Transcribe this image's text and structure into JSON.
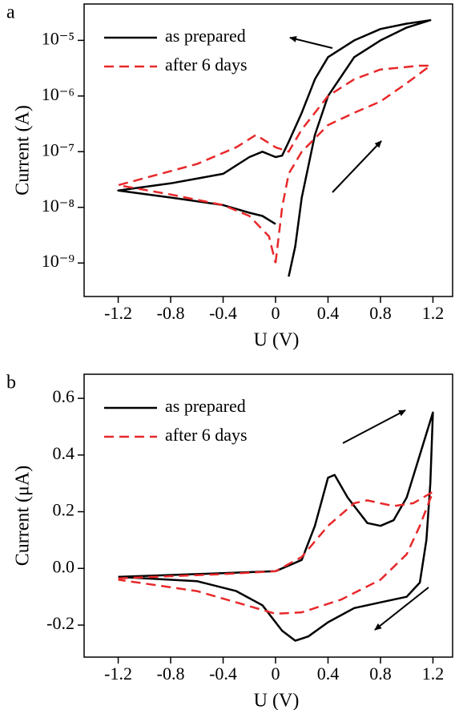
{
  "chart_data": [
    {
      "type": "line",
      "panel_label": "a",
      "xlabel": "U (V)",
      "ylabel": "Current (A)",
      "yscale": "log",
      "legend": "upper left",
      "xlim": [
        -1.46,
        1.35
      ],
      "xticks": [
        -1.2,
        -0.8,
        -0.4,
        0,
        0.4,
        0.8,
        1.2
      ],
      "ylim": [
        2.5e-10,
        4.5e-05
      ],
      "yticks": [
        {
          "value": 1e-09,
          "label": "10⁻⁹"
        },
        {
          "value": 1e-08,
          "label": "10⁻⁸"
        },
        {
          "value": 1e-07,
          "label": "10⁻⁷"
        },
        {
          "value": 1e-06,
          "label": "10⁻⁶"
        },
        {
          "value": 1e-05,
          "label": "10⁻⁵"
        }
      ],
      "series": [
        {
          "name": "as prepared",
          "color": "#000000",
          "line_style": "solid",
          "x": [
            0.1,
            0.15,
            0.2,
            0.3,
            0.4,
            0.6,
            0.8,
            1.0,
            1.18,
            1.0,
            0.8,
            0.6,
            0.4,
            0.3,
            0.2,
            0.1,
            0.05,
            0,
            -0.1,
            -0.2,
            -0.4,
            -0.8,
            -1.2,
            -0.8,
            -0.4,
            -0.2,
            -0.1,
            0
          ],
          "values": [
            5.7e-10,
            2e-09,
            1.5e-08,
            2e-07,
            1e-06,
            5e-06,
            1e-05,
            1.7e-05,
            2.3e-05,
            2e-05,
            1.6e-05,
            1e-05,
            5e-06,
            2e-06,
            5e-07,
            1.5e-07,
            8.5e-08,
            8e-08,
            1e-07,
            8e-08,
            4e-08,
            2.7e-08,
            2e-08,
            1.5e-08,
            1.1e-08,
            8e-09,
            7e-09,
            5e-09
          ]
        },
        {
          "name": "after 6 days",
          "color": "#e8282a",
          "line_style": "dashed",
          "x": [
            0,
            0.05,
            0.1,
            0.2,
            0.4,
            0.6,
            0.8,
            1.0,
            1.18,
            1.1,
            0.8,
            0.6,
            0.4,
            0.2,
            0.1,
            0,
            -0.15,
            -0.3,
            -0.6,
            -1.2,
            -0.8,
            -0.4,
            -0.2,
            -0.05,
            0
          ],
          "values": [
            1e-09,
            1e-08,
            4e-08,
            1e-07,
            3e-07,
            5e-07,
            8e-07,
            1.7e-06,
            3.5e-06,
            3.5e-06,
            3e-06,
            2e-06,
            1e-06,
            2.5e-07,
            1e-07,
            1.2e-07,
            2e-07,
            1.2e-07,
            6e-08,
            2.5e-08,
            1.7e-08,
            1.1e-08,
            7e-09,
            3e-09,
            1e-09
          ]
        }
      ]
    },
    {
      "type": "line",
      "panel_label": "b",
      "xlabel": "U (V)",
      "ylabel": "Current (μA)",
      "yscale": "linear",
      "legend": "upper left",
      "xlim": [
        -1.46,
        1.35
      ],
      "xticks": [
        -1.2,
        -0.8,
        -0.4,
        0,
        0.4,
        0.8,
        1.2
      ],
      "ylim": [
        -0.313,
        0.685
      ],
      "yticks": [
        -0.2,
        {
          "value": 0,
          "label": "0.0"
        },
        0.2,
        0.4,
        0.6
      ],
      "series": [
        {
          "name": "as prepared",
          "color": "#000000",
          "line_style": "solid",
          "x": [
            -1.2,
            -0.6,
            0,
            0.2,
            0.3,
            0.4,
            0.45,
            0.55,
            0.7,
            0.8,
            0.9,
            1.0,
            1.1,
            1.2,
            1.18,
            1.15,
            1.1,
            1.0,
            0.8,
            0.6,
            0.4,
            0.25,
            0.15,
            0.05,
            -0.1,
            -0.3,
            -0.6,
            -1.2
          ],
          "values": [
            -0.03,
            -0.02,
            -0.01,
            0.03,
            0.15,
            0.32,
            0.33,
            0.25,
            0.16,
            0.15,
            0.17,
            0.25,
            0.4,
            0.55,
            0.3,
            0.1,
            -0.05,
            -0.1,
            -0.12,
            -0.14,
            -0.19,
            -0.24,
            -0.255,
            -0.22,
            -0.13,
            -0.08,
            -0.045,
            -0.03
          ]
        },
        {
          "name": "after 6 days",
          "color": "#e8282a",
          "line_style": "dashed",
          "x": [
            -1.2,
            -0.4,
            0,
            0.2,
            0.4,
            0.6,
            0.7,
            0.9,
            1.05,
            1.2,
            1.1,
            1.0,
            0.8,
            0.5,
            0.2,
            0,
            -0.3,
            -0.6,
            -1.2
          ],
          "values": [
            -0.035,
            -0.02,
            -0.01,
            0.04,
            0.15,
            0.23,
            0.24,
            0.22,
            0.23,
            0.27,
            0.15,
            0.05,
            -0.04,
            -0.11,
            -0.155,
            -0.16,
            -0.12,
            -0.08,
            -0.04
          ]
        }
      ]
    }
  ]
}
